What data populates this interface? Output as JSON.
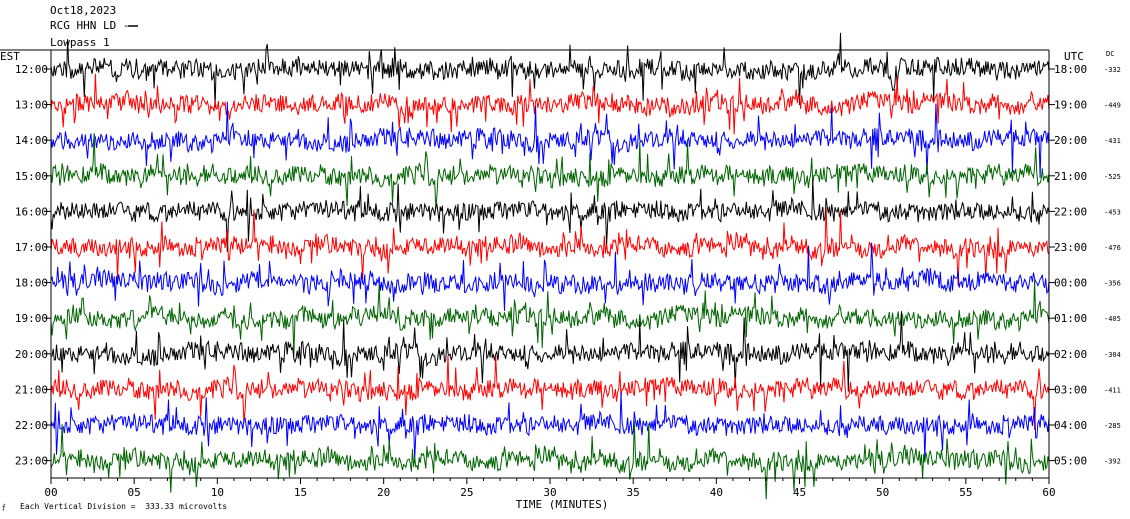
{
  "header": {
    "date": "Oct18,2023",
    "station_line": "RCG HHN LD --",
    "filter_line": "Lowpass 1"
  },
  "footer": {
    "note": "Each Vertical Division =  333.33 microvolts"
  },
  "chart_data": {
    "type": "line",
    "title": "",
    "xlabel": "TIME (MINUTES)",
    "x_ticks": [
      "00",
      "05",
      "10",
      "15",
      "20",
      "25",
      "30",
      "35",
      "40",
      "45",
      "50",
      "55",
      "60"
    ],
    "xlim": [
      0,
      60
    ],
    "left_axis_label": "EST",
    "right_axis_label": "UTC",
    "dc_label": "DC",
    "grid": true,
    "colors": [
      "#000000",
      "#ff0000",
      "#0000ff",
      "#006400"
    ],
    "rows": [
      {
        "est": "12:00",
        "utc": "18:00",
        "dc": "-332",
        "color": "#000000"
      },
      {
        "est": "13:00",
        "utc": "19:00",
        "dc": "-449",
        "color": "#ff0000"
      },
      {
        "est": "14:00",
        "utc": "20:00",
        "dc": "-431",
        "color": "#0000ff"
      },
      {
        "est": "15:00",
        "utc": "21:00",
        "dc": "-525",
        "color": "#006400"
      },
      {
        "est": "16:00",
        "utc": "22:00",
        "dc": "-453",
        "color": "#000000"
      },
      {
        "est": "17:00",
        "utc": "23:00",
        "dc": "-476",
        "color": "#ff0000"
      },
      {
        "est": "18:00",
        "utc": "00:00",
        "dc": "-356",
        "color": "#0000ff"
      },
      {
        "est": "19:00",
        "utc": "01:00",
        "dc": "-405",
        "color": "#006400"
      },
      {
        "est": "20:00",
        "utc": "02:00",
        "dc": "-304",
        "color": "#000000"
      },
      {
        "est": "21:00",
        "utc": "03:00",
        "dc": "-411",
        "color": "#ff0000"
      },
      {
        "est": "22:00",
        "utc": "04:00",
        "dc": "-285",
        "color": "#0000ff"
      },
      {
        "est": "23:00",
        "utc": "05:00",
        "dc": "-392",
        "color": "#006400"
      }
    ]
  }
}
